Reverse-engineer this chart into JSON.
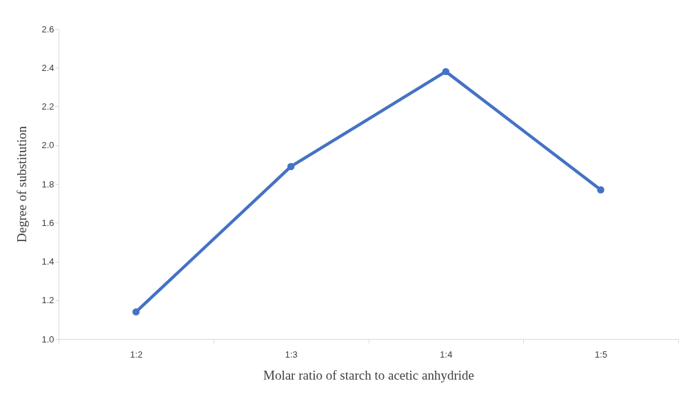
{
  "chart_data": {
    "type": "line",
    "xlabel": "Molar ratio of starch to acetic anhydride",
    "ylabel": "Degree of substitution",
    "categories": [
      "1:2",
      "1:3",
      "1:4",
      "1:5"
    ],
    "series": [
      {
        "color": "#4472c4",
        "values": [
          1.14,
          1.89,
          2.38,
          1.77
        ]
      }
    ],
    "ylim": [
      1.0,
      2.6
    ],
    "yticks": [
      {
        "value": 1.0,
        "label": "1.0"
      },
      {
        "value": 1.2,
        "label": "1.2"
      },
      {
        "value": 1.4,
        "label": "1.4"
      },
      {
        "value": 1.6,
        "label": "1.6"
      },
      {
        "value": 1.8,
        "label": "1.8"
      },
      {
        "value": 2.0,
        "label": "2.0"
      },
      {
        "value": 2.2,
        "label": "2.2"
      },
      {
        "value": 2.4,
        "label": "2.4"
      },
      {
        "value": 2.6,
        "label": "2.6"
      }
    ],
    "grid": false,
    "marker": "circle",
    "line_style": "solid"
  }
}
